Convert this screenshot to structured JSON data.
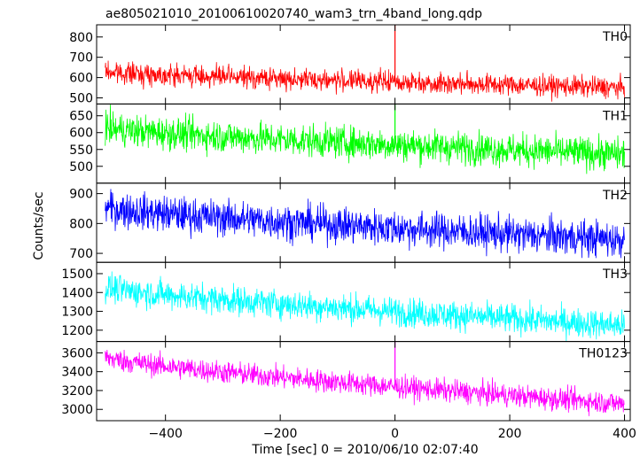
{
  "chart_data": {
    "type": "line",
    "title": "ae805021010_20100610020740_wam3_trn_4band_long.qdp",
    "xlabel": "Time [sec] 0 = 2010/06/10 02:07:40",
    "ylabel": "Counts/sec",
    "xlim": [
      -520,
      410
    ],
    "xticks": [
      -400,
      -200,
      0,
      200,
      400
    ],
    "xtick_labels": [
      "−400",
      "−200",
      "0",
      "200",
      "400"
    ],
    "grid": false,
    "panels": [
      {
        "name": "TH0",
        "color": "#ff0000",
        "ylim": [
          470,
          860
        ],
        "yticks": [
          500,
          600,
          700,
          800
        ],
        "series": {
          "x_start": -505,
          "x_end": 400,
          "start_mean": 630,
          "end_mean": 550,
          "noise": 30,
          "spikes": [
            {
              "x": 0,
              "y": 860
            }
          ]
        }
      },
      {
        "name": "TH1",
        "color": "#00ff00",
        "ylim": [
          450,
          685
        ],
        "yticks": [
          500,
          550,
          600,
          650
        ],
        "series": {
          "x_start": -505,
          "x_end": 400,
          "start_mean": 615,
          "end_mean": 535,
          "noise": 28,
          "spikes": [
            {
              "x": 0,
              "y": 685
            }
          ]
        }
      },
      {
        "name": "TH2",
        "color": "#0000ff",
        "ylim": [
          670,
          935
        ],
        "yticks": [
          700,
          800,
          900
        ],
        "series": {
          "x_start": -505,
          "x_end": 400,
          "start_mean": 855,
          "end_mean": 745,
          "noise": 35,
          "spikes": []
        }
      },
      {
        "name": "TH3",
        "color": "#00ffff",
        "ylim": [
          1140,
          1560
        ],
        "yticks": [
          1200,
          1300,
          1400,
          1500
        ],
        "series": {
          "x_start": -505,
          "x_end": 400,
          "start_mean": 1430,
          "end_mean": 1225,
          "noise": 45,
          "spikes": []
        }
      },
      {
        "name": "TH0123",
        "color": "#ff00ff",
        "ylim": [
          2880,
          3720
        ],
        "yticks": [
          3000,
          3200,
          3400,
          3600
        ],
        "series": {
          "x_start": -505,
          "x_end": 400,
          "start_mean": 3560,
          "end_mean": 3060,
          "noise": 70,
          "spikes": [
            {
              "x": 0,
              "y": 3720
            }
          ]
        }
      }
    ]
  }
}
